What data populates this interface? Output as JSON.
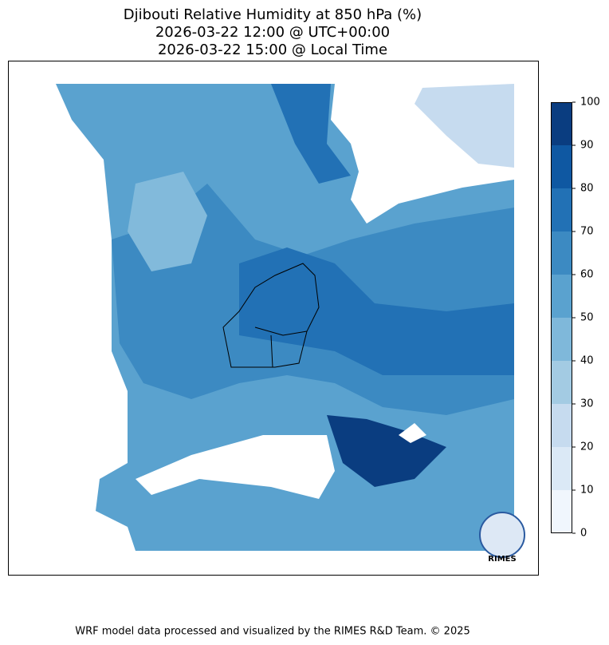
{
  "title": [
    "Djibouti Relative Humidity at 850 hPa (%)",
    "2026-03-22 12:00 @ UTC+00:00",
    "2026-03-22 15:00 @ Local Time"
  ],
  "colorbar": {
    "lim": [
      0,
      100
    ],
    "ticks": [
      0,
      10,
      20,
      30,
      40,
      50,
      60,
      70,
      80,
      90,
      100
    ],
    "colors": [
      "#f0f6fd",
      "#dbe9f6",
      "#c6dbef",
      "#a3cbe3",
      "#7fb8da",
      "#5aa2cf",
      "#3c8ac2",
      "#2271b5",
      "#0f58a2",
      "#0a3d80"
    ]
  },
  "logo": "RIMES",
  "footer": "WRF model data processed and visualized by the RIMES R&D Team. © 2025"
}
